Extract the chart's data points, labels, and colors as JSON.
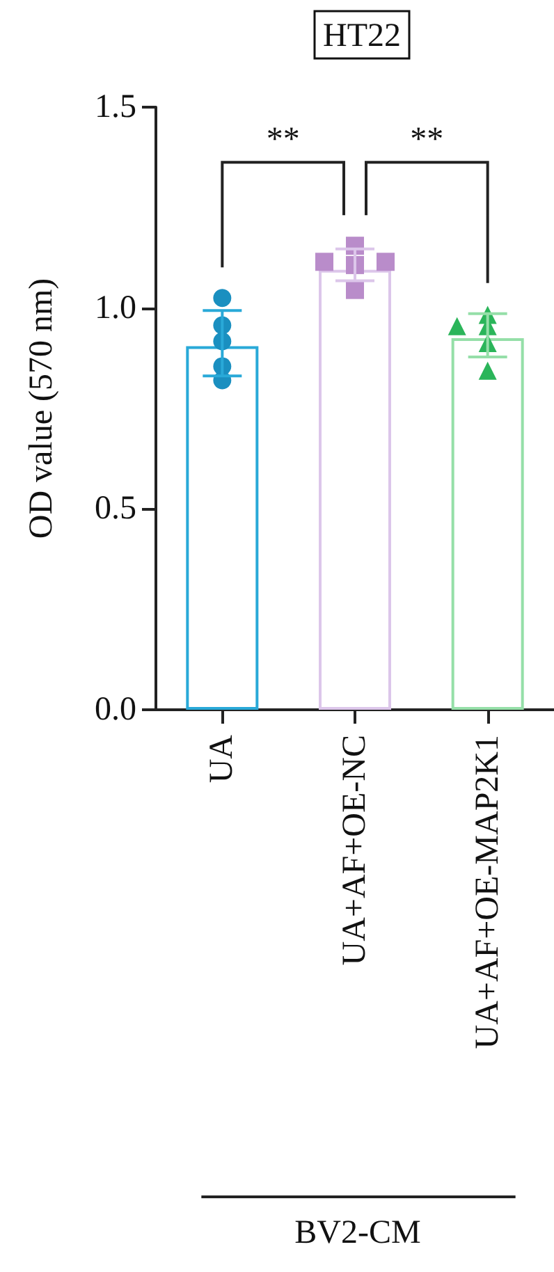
{
  "chart_data": {
    "type": "bar",
    "title": "HT22",
    "ylabel": "OD value (570 nm)",
    "categories": [
      "UA",
      "UA+AF+OE-NC",
      "UA+AF+OE-MAP2K1"
    ],
    "values": [
      0.905,
      1.095,
      0.925
    ],
    "colors": [
      "#29a9d8",
      "#dcc6ea",
      "#95dfa8"
    ],
    "errors": [
      [
        0.831,
        0.994
      ],
      [
        1.068,
        1.147
      ],
      [
        0.878,
        0.986
      ]
    ],
    "series": [
      {
        "type": "scatter",
        "color": "#1a8fc0",
        "marker": "circle",
        "x": [
          "UA",
          "UA",
          "UA",
          "UA",
          "UA"
        ],
        "values": [
          1.025,
          0.957,
          0.917,
          0.855,
          0.82
        ]
      },
      {
        "type": "scatter",
        "color": "#b98cca",
        "marker": "square",
        "x": [
          "UA+AF+OE-NC",
          "UA+AF+OE-NC",
          "UA+AF+OE-NC",
          "UA+AF+OE-NC",
          "UA+AF+OE-NC"
        ],
        "values": [
          1.155,
          1.107,
          1.115,
          1.115,
          1.045
        ]
      },
      {
        "type": "scatter",
        "color": "#2bb55a",
        "marker": "triangle",
        "x": [
          "UA+AF+OE-MAP2K1",
          "UA+AF+OE-MAP2K1",
          "UA+AF+OE-MAP2K1",
          "UA+AF+OE-MAP2K1",
          "UA+AF+OE-MAP2K1"
        ],
        "values": [
          0.983,
          0.913,
          0.955,
          0.955,
          0.844
        ]
      }
    ],
    "ylim": [
      0,
      1.5
    ],
    "yticks": [
      {
        "value": 0,
        "label": "0.0"
      },
      {
        "value": 0.5,
        "label": "0.5"
      },
      {
        "value": 1.0,
        "label": "1.0"
      },
      {
        "value": 1.5,
        "label": "1.5"
      }
    ],
    "annotations": [
      "**",
      "**",
      "BV2-CM"
    ]
  }
}
